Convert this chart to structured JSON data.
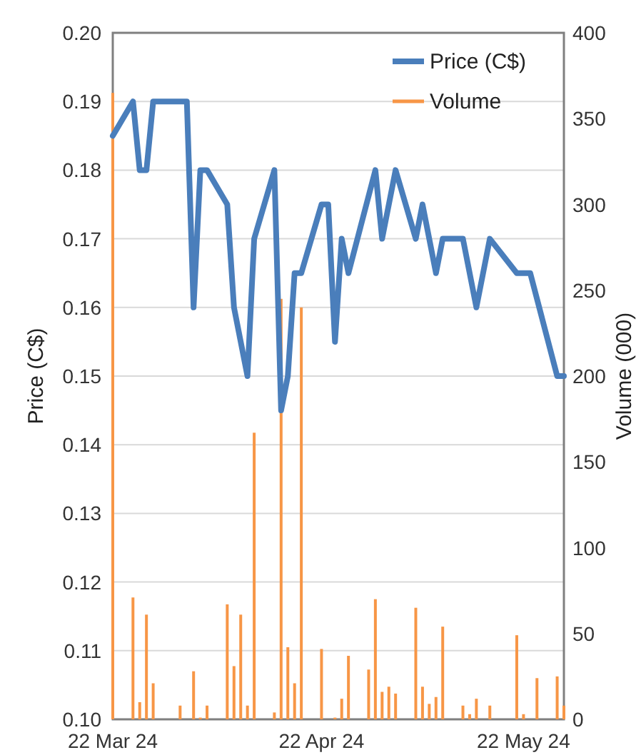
{
  "chart_data": {
    "type": "line",
    "ylabel": "Price (C$)",
    "y2label": "Volume (000)",
    "xlim": [
      "2024-03-22",
      "2024-05-28"
    ],
    "xticks": [
      {
        "value": "2024-03-22",
        "label": "22 Mar 24"
      },
      {
        "value": "2024-04-22",
        "label": "22 Apr 24"
      },
      {
        "value": "2024-05-22",
        "label": "22 May 24"
      }
    ],
    "ylim": [
      0.1,
      0.2
    ],
    "yticks": [
      {
        "value": 0.1,
        "label": "0.10"
      },
      0.11,
      0.12,
      0.13,
      0.14,
      0.15,
      0.16,
      0.17,
      0.18,
      0.19,
      {
        "value": 0.2,
        "label": "0.20"
      }
    ],
    "y2lim": [
      0,
      400
    ],
    "y2ticks": [
      0,
      50,
      100,
      150,
      200,
      250,
      300,
      350,
      400
    ],
    "grid": "y",
    "legend": "top right",
    "series": [
      {
        "name": "Price (C$)",
        "color": "#4a7ebb",
        "x": [
          "2024-03-22",
          "2024-03-25",
          "2024-03-26",
          "2024-03-27",
          "2024-03-28",
          "2024-04-02",
          "2024-04-03",
          "2024-04-04",
          "2024-04-05",
          "2024-04-08",
          "2024-04-09",
          "2024-04-11",
          "2024-04-12",
          "2024-04-15",
          "2024-04-16",
          "2024-04-17",
          "2024-04-18",
          "2024-04-19",
          "2024-04-22",
          "2024-04-23",
          "2024-04-24",
          "2024-04-25",
          "2024-04-26",
          "2024-04-30",
          "2024-05-01",
          "2024-05-03",
          "2024-05-06",
          "2024-05-07",
          "2024-05-09",
          "2024-05-10",
          "2024-05-13",
          "2024-05-15",
          "2024-05-17",
          "2024-05-21",
          "2024-05-23",
          "2024-05-27",
          "2024-05-28"
        ],
        "values": [
          0.185,
          0.19,
          0.18,
          0.18,
          0.19,
          0.19,
          0.16,
          0.18,
          0.18,
          0.175,
          0.16,
          0.15,
          0.17,
          0.18,
          0.145,
          0.15,
          0.165,
          0.165,
          0.175,
          0.175,
          0.155,
          0.17,
          0.165,
          0.18,
          0.17,
          0.18,
          0.17,
          0.175,
          0.165,
          0.17,
          0.17,
          0.16,
          0.17,
          0.165,
          0.165,
          0.15,
          0.15
        ]
      },
      {
        "name": "Volume",
        "type": "bar",
        "axis": "y2",
        "color": "#f79646",
        "x": [
          "2024-03-22",
          "2024-03-25",
          "2024-03-26",
          "2024-03-27",
          "2024-03-28",
          "2024-04-01",
          "2024-04-03",
          "2024-04-04",
          "2024-04-05",
          "2024-04-08",
          "2024-04-09",
          "2024-04-10",
          "2024-04-11",
          "2024-04-12",
          "2024-04-15",
          "2024-04-16",
          "2024-04-17",
          "2024-04-18",
          "2024-04-19",
          "2024-04-22",
          "2024-04-24",
          "2024-04-25",
          "2024-04-26",
          "2024-04-29",
          "2024-04-30",
          "2024-05-01",
          "2024-05-02",
          "2024-05-03",
          "2024-05-06",
          "2024-05-07",
          "2024-05-08",
          "2024-05-09",
          "2024-05-10",
          "2024-05-13",
          "2024-05-14",
          "2024-05-15",
          "2024-05-17",
          "2024-05-21",
          "2024-05-22",
          "2024-05-24",
          "2024-05-27",
          "2024-05-28"
        ],
        "values": [
          365,
          71,
          10,
          61,
          21,
          8,
          28,
          1,
          8,
          67,
          31,
          61,
          8,
          167,
          4,
          245,
          42,
          21,
          240,
          41,
          1,
          12,
          37,
          29,
          70,
          16,
          19,
          15,
          65,
          19,
          9,
          13,
          54,
          8,
          3,
          12,
          8,
          49,
          3,
          24,
          25,
          8
        ]
      }
    ]
  }
}
